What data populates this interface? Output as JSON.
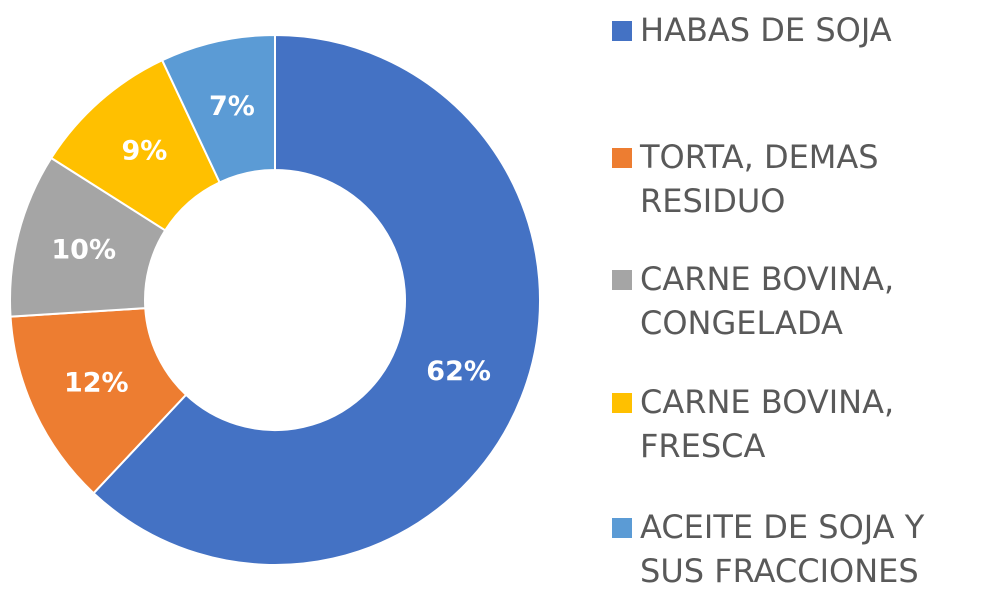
{
  "chart_data": {
    "type": "donut",
    "categories": [
      "HABAS DE SOJA",
      "TORTA, DEMAS RESIDUO",
      "CARNE BOVINA, CONGELADA",
      "CARNE BOVINA, FRESCA",
      "ACEITE DE SOJA Y SUS FRACCIONES"
    ],
    "values": [
      62,
      12,
      10,
      9,
      7
    ],
    "value_labels": [
      "62%",
      "12%",
      "10%",
      "9%",
      "7%"
    ],
    "colors": [
      "#4472c4",
      "#ed7d31",
      "#a5a5a5",
      "#ffc000",
      "#5b9bd5"
    ],
    "legend": "right"
  }
}
